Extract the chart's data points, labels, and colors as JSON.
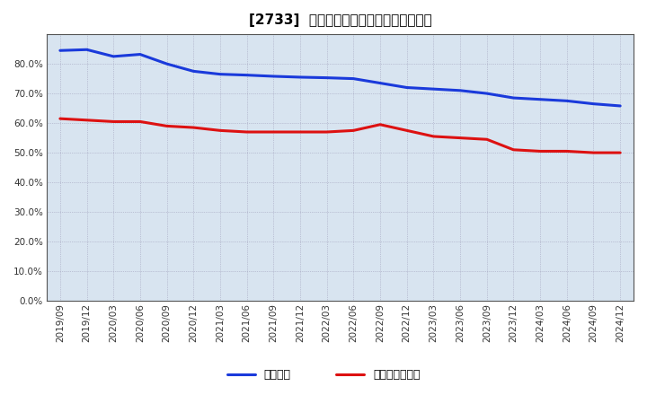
{
  "title": "[2733]  固定比率、固定長期適合率の推移",
  "x_labels": [
    "2019/09",
    "2019/12",
    "2020/03",
    "2020/06",
    "2020/09",
    "2020/12",
    "2021/03",
    "2021/06",
    "2021/09",
    "2021/12",
    "2022/03",
    "2022/06",
    "2022/09",
    "2022/12",
    "2023/03",
    "2023/06",
    "2023/09",
    "2023/12",
    "2024/03",
    "2024/06",
    "2024/09",
    "2024/12"
  ],
  "fixed_ratio": [
    84.5,
    84.8,
    82.5,
    83.2,
    80.0,
    77.5,
    76.5,
    76.2,
    75.8,
    75.5,
    75.3,
    75.0,
    73.5,
    72.0,
    71.5,
    71.0,
    70.0,
    68.5,
    68.0,
    67.5,
    66.5,
    65.8
  ],
  "fixed_long_ratio": [
    61.5,
    61.0,
    60.5,
    60.5,
    59.0,
    58.5,
    57.5,
    57.0,
    57.0,
    57.0,
    57.0,
    57.5,
    59.5,
    57.5,
    55.5,
    55.0,
    54.5,
    51.0,
    50.5,
    50.5,
    50.0,
    50.0
  ],
  "line_color_blue": "#1a3adb",
  "line_color_red": "#dd1111",
  "ylabel_ticks": [
    0.0,
    10.0,
    20.0,
    30.0,
    40.0,
    50.0,
    60.0,
    70.0,
    80.0
  ],
  "ylim": [
    0.0,
    90.0
  ],
  "fig_bg_color": "#ffffff",
  "plot_bg_color": "#d8e4f0",
  "grid_color": "#a0a0bb",
  "legend_blue": "固定比率",
  "legend_red": "固定長期適合率",
  "title_fontsize": 11,
  "axis_fontsize": 7.5,
  "legend_fontsize": 9,
  "line_width": 2.2
}
